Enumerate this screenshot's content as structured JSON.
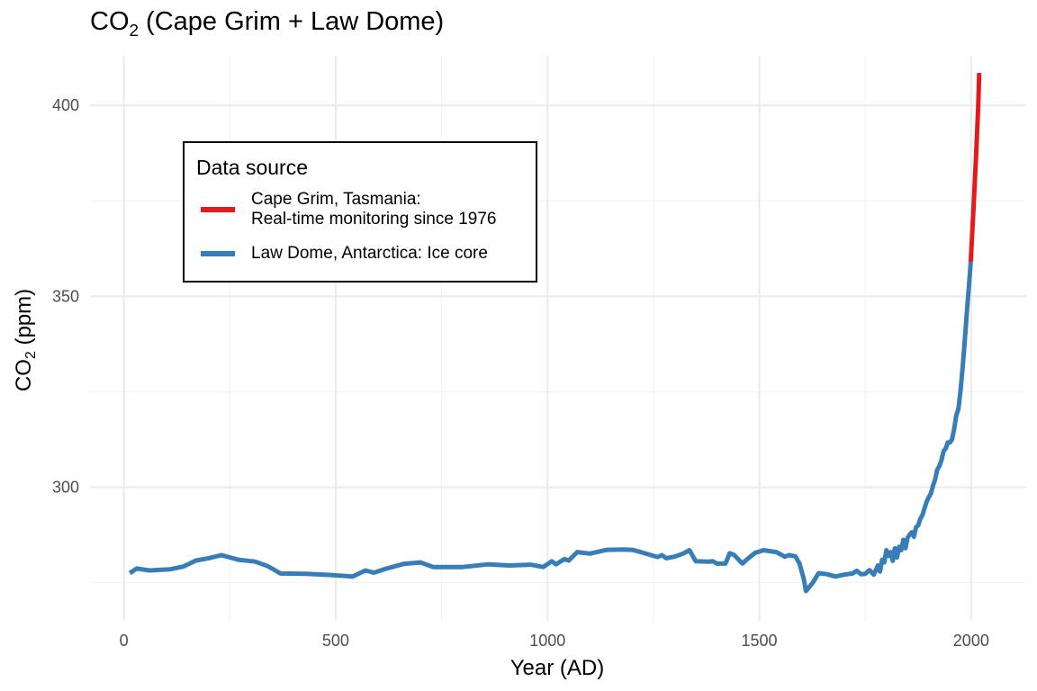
{
  "title_main": "CO",
  "title_sub": "2",
  "title_rest": " (Cape Grim + Law Dome)",
  "chart_data": {
    "type": "line",
    "xlabel": "Year (AD)",
    "ylabel_main": "CO",
    "ylabel_sub": "2",
    "ylabel_rest": " (ppm)",
    "xlim": [
      -80,
      2130
    ],
    "ylim": [
      265,
      413
    ],
    "x_ticks": [
      0,
      500,
      1000,
      1500,
      2000
    ],
    "y_ticks": [
      300,
      350,
      400
    ],
    "grid": true,
    "legend": {
      "title": "Data source",
      "placement": "top-left inside",
      "entries": [
        {
          "label": "Cape Grim, Tasmania:\nReal-time monitoring since 1976",
          "color": "#e41a1c"
        },
        {
          "label": "Law Dome, Antarctica: Ice core",
          "color": "#377eb8"
        }
      ]
    },
    "series": [
      {
        "name": "Law Dome, Antarctica: Ice core",
        "color": "#377eb8",
        "x": [
          14,
          30,
          60,
          110,
          140,
          170,
          200,
          230,
          270,
          310,
          340,
          370,
          430,
          490,
          540,
          570,
          590,
          620,
          660,
          700,
          730,
          760,
          800,
          860,
          910,
          960,
          990,
          1010,
          1020,
          1040,
          1050,
          1070,
          1100,
          1140,
          1180,
          1200,
          1220,
          1260,
          1270,
          1280,
          1300,
          1320,
          1335,
          1350,
          1380,
          1390,
          1400,
          1420,
          1430,
          1440,
          1460,
          1470,
          1490,
          1510,
          1540,
          1560,
          1570,
          1585,
          1595,
          1605,
          1610,
          1625,
          1640,
          1660,
          1680,
          1700,
          1720,
          1730,
          1740,
          1750,
          1760,
          1770,
          1780,
          1785,
          1790,
          1795,
          1800,
          1805,
          1810,
          1815,
          1820,
          1825,
          1830,
          1835,
          1840,
          1845,
          1850,
          1855,
          1860,
          1865,
          1870,
          1875,
          1880,
          1885,
          1890,
          1895,
          1900,
          1905,
          1910,
          1915,
          1920,
          1925,
          1930,
          1935,
          1940,
          1945,
          1950,
          1955,
          1960,
          1965,
          1970,
          1975,
          1980,
          1985,
          1990,
          1995,
          1999
        ],
        "y": [
          277.5,
          278.7,
          278.2,
          278.5,
          279.2,
          280.8,
          281.4,
          282.2,
          281.0,
          280.5,
          279.3,
          277.4,
          277.3,
          277.0,
          276.6,
          278.2,
          277.6,
          278.7,
          279.9,
          280.3,
          279.1,
          279.1,
          279.1,
          279.8,
          279.5,
          279.7,
          279.1,
          280.6,
          279.8,
          281.2,
          280.8,
          283.0,
          282.6,
          283.6,
          283.7,
          283.6,
          283.0,
          281.7,
          282.2,
          281.4,
          281.8,
          282.6,
          283.5,
          280.6,
          280.5,
          280.6,
          280.0,
          280.0,
          282.7,
          282.3,
          280.0,
          281.0,
          282.8,
          283.5,
          283.0,
          281.8,
          282.2,
          281.9,
          280.0,
          276.0,
          272.8,
          274.8,
          277.5,
          277.2,
          276.6,
          277.1,
          277.4,
          278.1,
          277.2,
          277.3,
          278.3,
          277.1,
          279.5,
          277.9,
          281.0,
          280.3,
          283.5,
          282.0,
          283.0,
          280.7,
          284.0,
          281.6,
          284.4,
          283.5,
          286.2,
          284.0,
          286.7,
          287.6,
          288.2,
          287.0,
          289.5,
          290.0,
          291.7,
          292.7,
          294.5,
          296.2,
          297.4,
          298.3,
          300.4,
          302.0,
          304.6,
          305.5,
          307.1,
          309.4,
          310.1,
          311.7,
          311.7,
          312.5,
          315.3,
          318.9,
          320.5,
          325.4,
          331.4,
          338.5,
          345.9,
          353.0,
          359.0
        ]
      },
      {
        "name": "Cape Grim, Tasmania:\nReal-time monitoring since 1976",
        "color": "#e41a1c",
        "x": [
          1999,
          2002,
          2005,
          2008,
          2011,
          2014,
          2017,
          2019
        ],
        "y": [
          359.0,
          365.5,
          371.8,
          378.5,
          385.2,
          392.5,
          400.5,
          408.5
        ]
      }
    ]
  }
}
